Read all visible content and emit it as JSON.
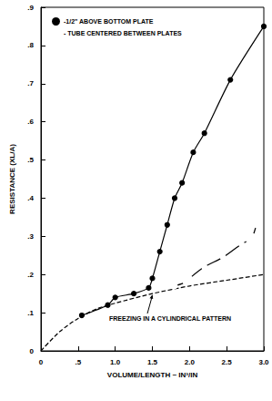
{
  "chart_data": {
    "type": "line",
    "x_label": "VOLUME/LENGTH ~ IN³/IN",
    "y_label": "RESISTANCE (XL/A)",
    "xlim": [
      0,
      3.0
    ],
    "xticks": [
      0,
      {
        "value": 0.5,
        "label": ".5"
      },
      {
        "value": 1.0,
        "label": "1.0"
      },
      1.5,
      {
        "value": 2.0,
        "label": "2.0"
      },
      2.5,
      {
        "value": 3.0,
        "label": "3.0"
      }
    ],
    "ylim": [
      0,
      0.9
    ],
    "yticks": [
      0,
      {
        "value": 0.1,
        "label": ".1"
      },
      {
        "value": 0.2,
        "label": ".2"
      },
      {
        "value": 0.3,
        "label": ".3"
      },
      {
        "value": 0.4,
        "label": ".4"
      },
      {
        "value": 0.5,
        "label": ".5"
      },
      {
        "value": 0.6,
        "label": ".6"
      },
      {
        "value": 0.7,
        "label": ".7"
      },
      {
        "value": 0.8,
        "label": ".8"
      },
      {
        "value": 0.9,
        "label": ".9"
      }
    ],
    "grid": false,
    "legend": "upper left",
    "annotations": [
      "FREEZING IN A CYLINDRICAL PATTERN"
    ],
    "series": [
      {
        "name": "-1/2\" ABOVE BOTTOM PLATE",
        "color": "#000000",
        "marker": "filled_circle",
        "line_style": "solid",
        "x": [
          0.55,
          0.9,
          1.0,
          1.25,
          1.45,
          1.5,
          1.6,
          1.7,
          1.8,
          1.9,
          2.05,
          2.2,
          2.55,
          3.0
        ],
        "values": [
          0.093,
          0.12,
          0.14,
          0.15,
          0.165,
          0.19,
          0.26,
          0.33,
          0.4,
          0.44,
          0.52,
          0.57,
          0.71,
          0.85
        ]
      },
      {
        "name": "- TUBE CENTERED BETWEEN PLATES",
        "color": "#000000",
        "marker": "open_circle",
        "line_style": "solid",
        "x": [
          1.8,
          1.95,
          2.0,
          2.2,
          2.45,
          2.7,
          2.8,
          2.85,
          2.9
        ],
        "values": [
          0.17,
          0.18,
          0.19,
          0.22,
          0.245,
          0.28,
          0.29,
          0.3,
          0.33
        ]
      },
      {
        "color": "#000000",
        "marker": "none",
        "line_style": "dashed",
        "x": [
          0,
          0.25,
          0.5,
          0.75,
          1.0,
          1.5,
          2.0,
          2.5,
          3.0
        ],
        "values": [
          0,
          0.05,
          0.085,
          0.11,
          0.125,
          0.15,
          0.17,
          0.185,
          0.2
        ]
      }
    ]
  }
}
